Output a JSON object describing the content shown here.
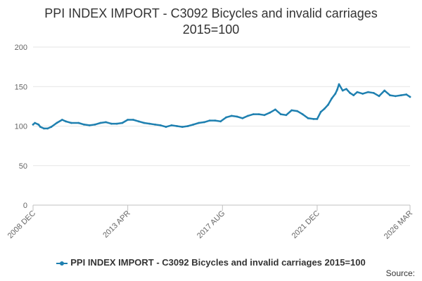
{
  "chart_data": {
    "type": "line",
    "title": "PPI INDEX IMPORT - C3092 Bicycles and invalid carriages 2015=100",
    "title_lines": [
      "PPI INDEX IMPORT - C3092 Bicycles and invalid carriages",
      "2015=100"
    ],
    "xlabel": "",
    "ylabel": "",
    "ylim": [
      0,
      200
    ],
    "yticks": [
      0,
      50,
      100,
      150,
      200
    ],
    "xticks": [
      "2008 DEC",
      "2013 APR",
      "2017 AUG",
      "2021 DEC",
      "2026 MAR"
    ],
    "xlim": [
      "2008-12",
      "2026-03"
    ],
    "grid": true,
    "legend_position": "bottom",
    "source_label": "Source:",
    "series": [
      {
        "name": "PPI INDEX IMPORT - C3092 Bicycles and invalid carriages 2015=100",
        "color": "#1f80b0",
        "x": [
          "2008-12",
          "2009-01",
          "2009-03",
          "2009-04",
          "2009-06",
          "2009-08",
          "2009-10",
          "2010-01",
          "2010-04",
          "2010-06",
          "2010-09",
          "2011-01",
          "2011-04",
          "2011-07",
          "2011-10",
          "2012-01",
          "2012-04",
          "2012-07",
          "2012-10",
          "2013-01",
          "2013-04",
          "2013-07",
          "2013-10",
          "2014-01",
          "2014-04",
          "2014-07",
          "2014-10",
          "2015-01",
          "2015-04",
          "2015-07",
          "2015-10",
          "2016-01",
          "2016-04",
          "2016-07",
          "2016-10",
          "2017-01",
          "2017-04",
          "2017-07",
          "2017-10",
          "2018-01",
          "2018-04",
          "2018-07",
          "2018-10",
          "2019-01",
          "2019-04",
          "2019-07",
          "2019-10",
          "2020-01",
          "2020-04",
          "2020-07",
          "2020-10",
          "2021-01",
          "2021-04",
          "2021-07",
          "2021-10",
          "2021-12",
          "2022-02",
          "2022-04",
          "2022-06",
          "2022-08",
          "2022-10",
          "2022-11",
          "2022-12",
          "2023-02",
          "2023-04",
          "2023-06",
          "2023-08",
          "2023-10",
          "2024-01",
          "2024-04",
          "2024-07",
          "2024-10",
          "2025-01",
          "2025-04",
          "2025-07",
          "2025-10",
          "2026-01",
          "2026-03"
        ],
        "values": [
          102,
          104,
          102,
          99,
          97,
          97,
          99,
          104,
          108,
          106,
          104,
          104,
          102,
          101,
          102,
          104,
          105,
          103,
          103,
          104,
          108,
          108,
          106,
          104,
          103,
          102,
          101,
          99,
          101,
          100,
          99,
          100,
          102,
          104,
          105,
          107,
          107,
          106,
          111,
          113,
          112,
          110,
          113,
          115,
          115,
          114,
          117,
          121,
          115,
          114,
          120,
          119,
          115,
          110,
          109,
          109,
          118,
          122,
          127,
          135,
          141,
          146,
          153,
          145,
          147,
          142,
          139,
          143,
          141,
          143,
          142,
          138,
          145,
          139,
          138,
          139,
          140,
          137
        ]
      }
    ]
  }
}
